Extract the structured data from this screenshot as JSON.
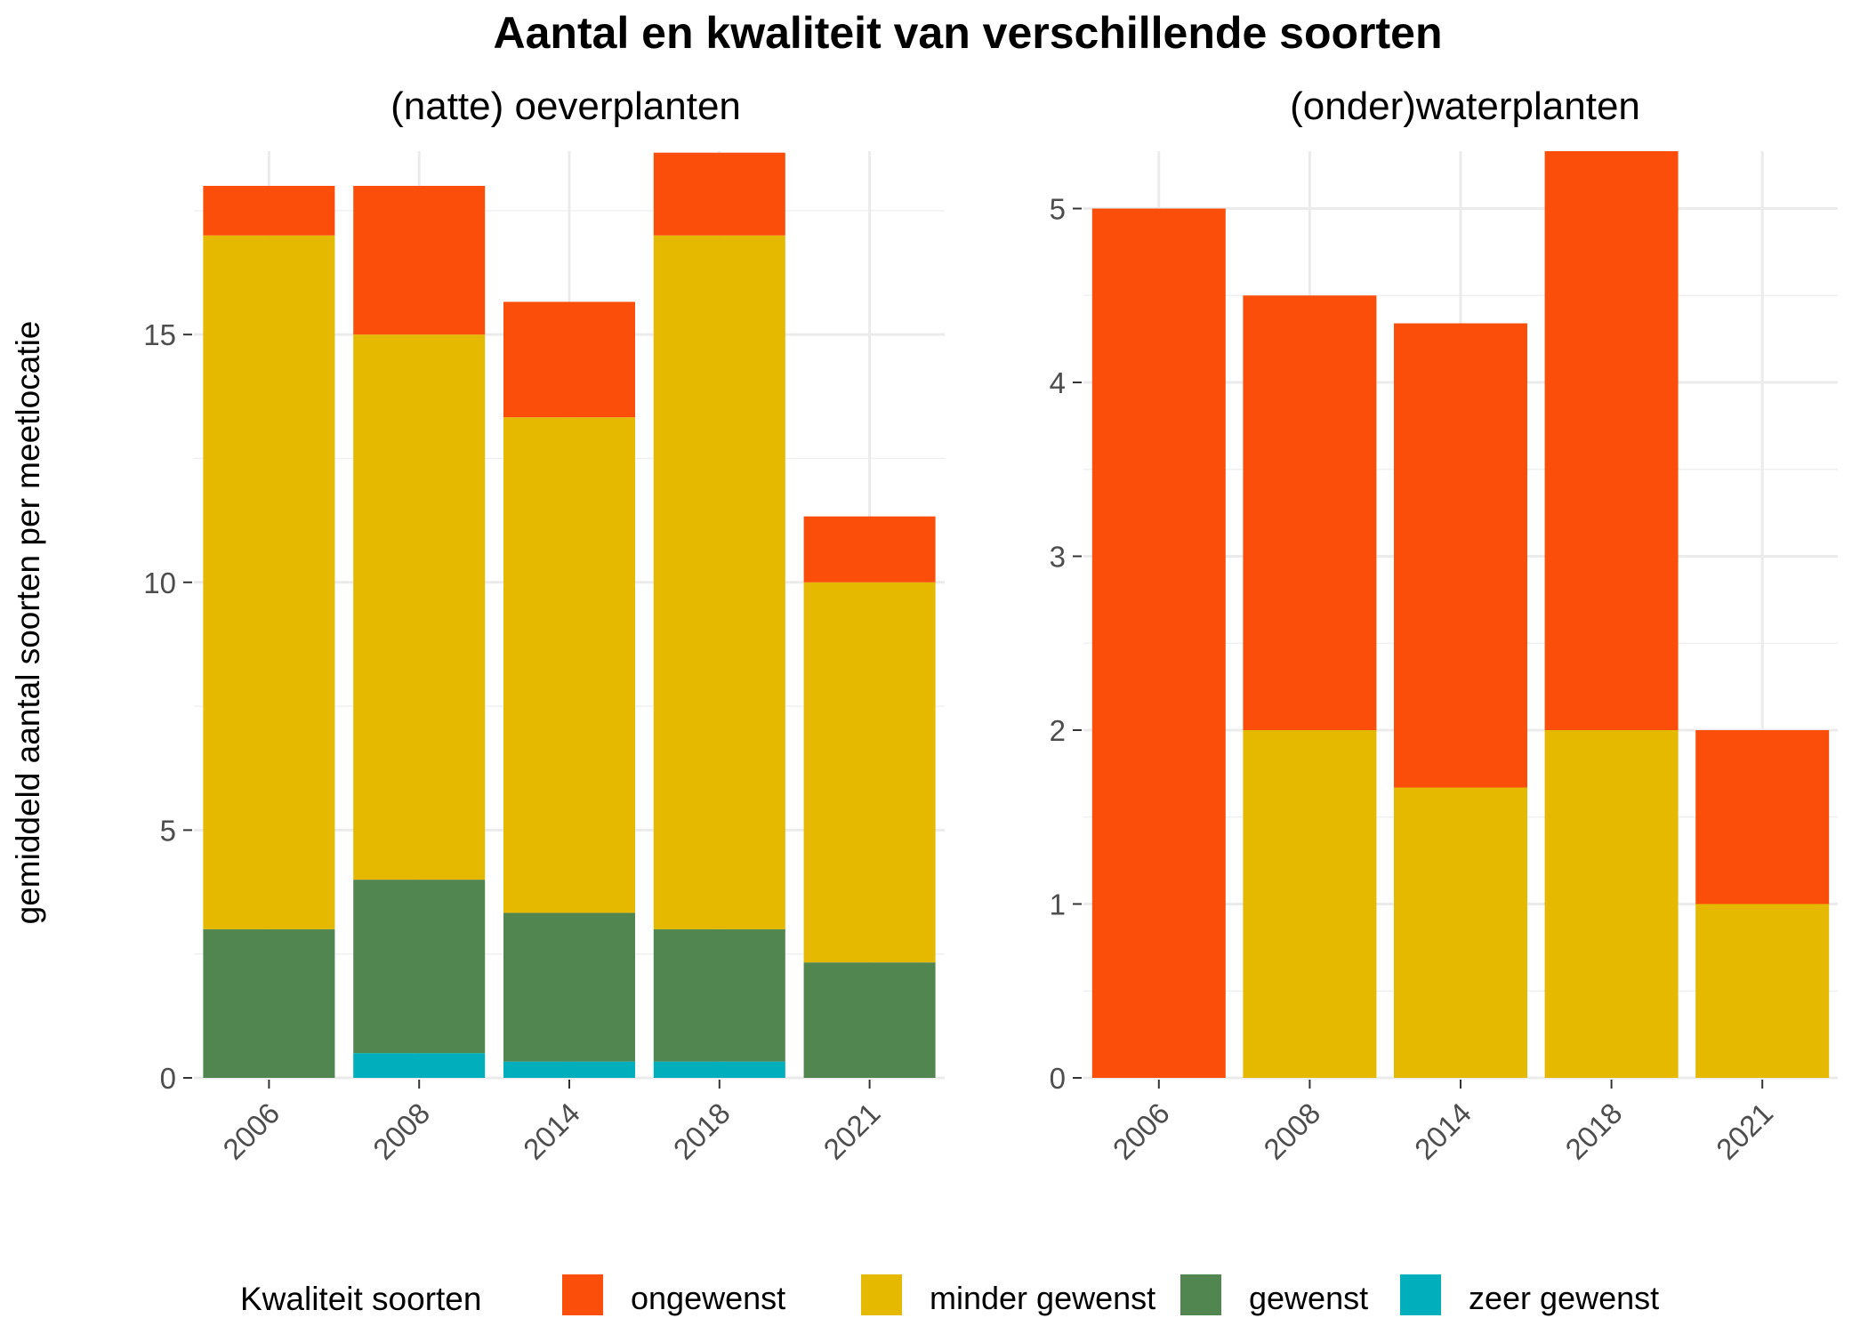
{
  "chart_data": {
    "type": "bar",
    "stacked": true,
    "title": "Aantal en kwaliteit van verschillende soorten",
    "ylabel": "gemiddeld aantal soorten per meetlocatie",
    "legend": {
      "title": "Kwaliteit soorten",
      "position": "bottom",
      "items": [
        {
          "name": "ongewenst",
          "color": "#FC4E0B"
        },
        {
          "name": "minder gewenst",
          "color": "#E5B900"
        },
        {
          "name": "gewenst",
          "color": "#528650"
        },
        {
          "name": "zeer gewenst",
          "color": "#00AFBB"
        }
      ]
    },
    "panels": [
      {
        "subtitle": "(natte) oeverplanten",
        "categories": [
          "2006",
          "2008",
          "2014",
          "2018",
          "2021"
        ],
        "ylim": [
          0,
          18.7
        ],
        "yticks": [
          0,
          5,
          10,
          15
        ],
        "series": [
          {
            "name": "zeer gewenst",
            "values": [
              0,
              0.5,
              0.33,
              0.33,
              0
            ]
          },
          {
            "name": "gewenst",
            "values": [
              3,
              3.5,
              3.0,
              2.67,
              2.33
            ]
          },
          {
            "name": "minder gewenst",
            "values": [
              14,
              11,
              10,
              14,
              7.67
            ]
          },
          {
            "name": "ongewenst",
            "values": [
              1,
              3,
              2.33,
              1.67,
              1.33
            ]
          }
        ]
      },
      {
        "subtitle": "(onder)waterplanten",
        "categories": [
          "2006",
          "2008",
          "2014",
          "2018",
          "2021"
        ],
        "ylim": [
          0,
          5.33
        ],
        "yticks": [
          0,
          1,
          2,
          3,
          4,
          5
        ],
        "series": [
          {
            "name": "zeer gewenst",
            "values": [
              0,
              0,
              0,
              0,
              0
            ]
          },
          {
            "name": "gewenst",
            "values": [
              0,
              0,
              0,
              0,
              0
            ]
          },
          {
            "name": "minder gewenst",
            "values": [
              0,
              2,
              1.67,
              2,
              1
            ]
          },
          {
            "name": "ongewenst",
            "values": [
              5,
              2.5,
              2.67,
              3.33,
              1
            ]
          }
        ]
      }
    ]
  }
}
